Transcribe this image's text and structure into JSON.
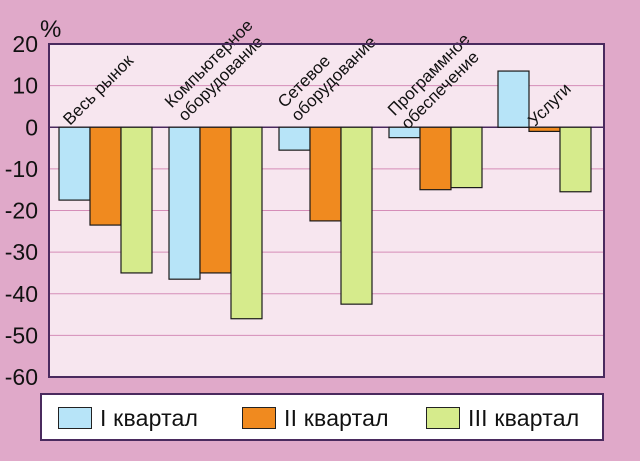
{
  "chart_data": {
    "type": "bar",
    "ylabel": "%",
    "ylim": [
      -60,
      20
    ],
    "yticks": [
      "20",
      "10",
      "0",
      "-10",
      "-20",
      "-30",
      "-40",
      "-50",
      "-60"
    ],
    "grid": true,
    "legend_position": "bottom",
    "categories": [
      [
        "Весь рынок"
      ],
      [
        "Компьютерное",
        "оборудование"
      ],
      [
        "Сетевое",
        "оборудование"
      ],
      [
        "Программное",
        "обеспечение"
      ],
      [
        "Услуги"
      ]
    ],
    "series": [
      {
        "name": "I квартал",
        "color": "#b7e4f8",
        "values": [
          -17.5,
          -36.5,
          -5.5,
          -2.5,
          13.5
        ]
      },
      {
        "name": "II квартал",
        "color": "#f08a1f",
        "values": [
          -23.5,
          -35.0,
          -22.5,
          -15.0,
          -1.0
        ]
      },
      {
        "name": "III квартал",
        "color": "#d6eb8c",
        "values": [
          -35.0,
          -46.0,
          -42.5,
          -14.5,
          -15.5
        ]
      }
    ]
  },
  "colors": {
    "background": "#e0a9c9",
    "plot_area": "#f7e6ef",
    "gridline": "#d58db8",
    "frame": "#4a2a5e"
  }
}
